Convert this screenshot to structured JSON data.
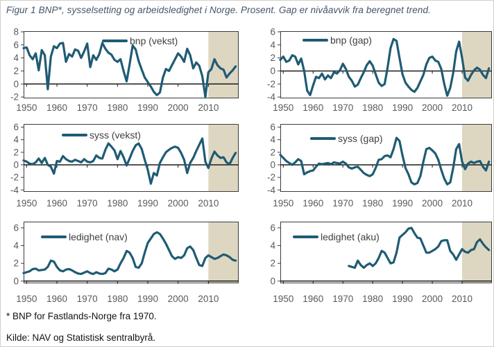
{
  "title": "Figur 1 BNP*, sysselsetting og arbeidsledighet i Norge. Prosent. Gap er nivåavvik fra beregnet trend.",
  "footnotes": {
    "note": "* BNP for Fastlands-Norge fra 1970.",
    "source": "Kilde: NAV og Statistisk sentralbyrå."
  },
  "colors": {
    "line": "#1f5b74",
    "shade": "#ddd7c2",
    "plot_border": "#3a3a3a",
    "zero_axis": "#1a1a1a",
    "tick_label": "#595959",
    "legend_text": "#404040",
    "title_text": "#44546a"
  },
  "chart_data": [
    {
      "type": "line",
      "legend": "bnp (vekst)",
      "x_start": 1949,
      "x_step": 1,
      "values": [
        5.5,
        5.6,
        4.4,
        3.8,
        4.7,
        2.1,
        5.2,
        4.4,
        -0.8,
        4.2,
        5.8,
        5.5,
        6.2,
        6.3,
        3.4,
        4.6,
        4.2,
        5.3,
        5.1,
        4.0,
        5.0,
        6.2,
        2.6,
        4.4,
        3.7,
        4.6,
        6.3,
        5.4,
        4.8,
        4.5,
        3.7,
        3.4,
        3.8,
        2.0,
        0.4,
        3.0,
        5.9,
        5.3,
        3.5,
        2.2,
        1.0,
        0.3,
        -0.4,
        -1.2,
        -1.7,
        -1.3,
        1.0,
        2.3,
        2.0,
        2.9,
        3.8,
        4.7,
        4.2,
        3.4,
        5.4,
        4.4,
        2.4,
        3.3,
        2.8,
        1.2,
        -2.0,
        1.8,
        2.3,
        3.8,
        2.9,
        2.4,
        2.2,
        1.0,
        1.6,
        2.1,
        2.7
      ],
      "ylim": [
        -2,
        8
      ],
      "yticks": [
        8,
        6,
        4,
        2,
        0,
        -2
      ],
      "xticks": [
        1950,
        1960,
        1970,
        1980,
        1990,
        2000,
        2010
      ],
      "xlim": [
        1949,
        2020
      ],
      "shaded_from": 2010,
      "shaded_to": 2020,
      "grid": false,
      "legend_position": "top-center"
    },
    {
      "type": "line",
      "legend": "bnp (gap)",
      "x_start": 1949,
      "x_step": 1,
      "values": [
        1.7,
        2.2,
        1.4,
        1.6,
        2.4,
        2.2,
        1.0,
        1.9,
        0.0,
        -3.0,
        -3.7,
        -2.2,
        -0.9,
        -1.1,
        -0.4,
        -1.3,
        -0.7,
        -1.1,
        -0.2,
        -0.4,
        0.1,
        1.1,
        0.3,
        -0.9,
        -1.5,
        -2.4,
        -2.1,
        -1.1,
        -0.2,
        0.9,
        1.5,
        0.8,
        -0.5,
        -1.8,
        -2.3,
        -2.0,
        0.5,
        3.5,
        4.9,
        4.6,
        2.0,
        -0.5,
        -1.8,
        -2.4,
        -2.9,
        -3.2,
        -2.6,
        -1.6,
        -0.6,
        1.0,
        2.0,
        2.2,
        1.6,
        1.4,
        0.3,
        -2.0,
        -3.8,
        -2.6,
        -0.3,
        3.0,
        4.5,
        2.0,
        -1.0,
        -1.5,
        -0.6,
        0.1,
        0.5,
        0.2,
        -0.6,
        -1.1,
        0.4
      ],
      "ylim": [
        -4,
        6
      ],
      "yticks": [
        6,
        4,
        2,
        0,
        -2,
        -4
      ],
      "xticks": [
        1950,
        1960,
        1970,
        1980,
        1990,
        2000,
        2010
      ],
      "xlim": [
        1949,
        2020
      ],
      "shaded_from": 2010,
      "shaded_to": 2020,
      "grid": false,
      "legend_position": "top-left"
    },
    {
      "type": "line",
      "legend": "syss (vekst)",
      "x_start": 1949,
      "x_step": 1,
      "values": [
        0.7,
        0.5,
        0.2,
        0.1,
        0.4,
        1.0,
        0.3,
        1.1,
        0.0,
        -0.3,
        -1.4,
        0.6,
        0.5,
        1.4,
        0.9,
        0.6,
        0.5,
        0.8,
        0.6,
        0.4,
        0.9,
        0.5,
        0.4,
        0.6,
        1.5,
        1.1,
        1.0,
        2.4,
        3.4,
        2.9,
        2.3,
        0.9,
        2.2,
        1.2,
        -0.1,
        1.0,
        2.2,
        3.1,
        3.4,
        2.5,
        0.8,
        -0.8,
        -3.0,
        -1.3,
        -1.7,
        0.3,
        1.2,
        2.0,
        2.4,
        2.7,
        2.9,
        2.7,
        1.9,
        0.8,
        -1.3,
        0.3,
        1.1,
        2.2,
        3.2,
        4.2,
        0.5,
        -0.5,
        1.0,
        2.1,
        1.5,
        1.1,
        1.2,
        0.4,
        0.1,
        1.1,
        1.9
      ],
      "ylim": [
        -4,
        6
      ],
      "yticks": [
        6,
        4,
        2,
        0,
        -2,
        -4
      ],
      "xticks": [
        1950,
        1960,
        1970,
        1980,
        1990,
        2000,
        2010
      ],
      "xlim": [
        1949,
        2020
      ],
      "shaded_from": 2010,
      "shaded_to": 2020,
      "grid": false,
      "legend_position": "top-left"
    },
    {
      "type": "line",
      "legend": "syss (gap)",
      "x_start": 1949,
      "x_step": 1,
      "values": [
        1.6,
        1.1,
        0.6,
        0.3,
        0.0,
        0.4,
        0.9,
        0.6,
        -1.5,
        -1.2,
        -1.0,
        -0.9,
        -0.3,
        0.2,
        0.1,
        0.2,
        0.3,
        0.1,
        0.4,
        0.3,
        0.2,
        0.5,
        0.2,
        -0.4,
        -0.6,
        -0.4,
        -0.3,
        -0.8,
        -1.3,
        -1.6,
        -1.8,
        -1.5,
        -0.5,
        0.8,
        0.9,
        1.4,
        1.5,
        1.2,
        2.5,
        4.3,
        3.8,
        1.5,
        -0.5,
        -1.5,
        -2.8,
        -3.1,
        -2.9,
        -1.8,
        0.5,
        2.5,
        2.7,
        2.3,
        1.8,
        0.8,
        -0.8,
        -2.2,
        -3.1,
        -2.8,
        -0.5,
        2.5,
        3.3,
        0.5,
        -0.7,
        0.2,
        0.5,
        0.3,
        0.5,
        0.6,
        -0.3,
        -0.9,
        0.5
      ],
      "ylim": [
        -4,
        6
      ],
      "yticks": [
        6,
        4,
        2,
        0,
        -2,
        -4
      ],
      "xticks": [
        1950,
        1960,
        1970,
        1980,
        1990,
        2000,
        2010
      ],
      "xlim": [
        1949,
        2020
      ],
      "shaded_from": 2010,
      "shaded_to": 2020,
      "grid": false,
      "legend_position": "top-left"
    },
    {
      "type": "line",
      "legend": "ledighet (nav)",
      "x_start": 1949,
      "x_step": 1,
      "values": [
        0.9,
        1.0,
        1.1,
        1.35,
        1.4,
        1.2,
        1.25,
        1.3,
        1.6,
        2.3,
        2.2,
        1.6,
        1.2,
        1.1,
        1.3,
        1.35,
        1.2,
        1.0,
        0.85,
        0.8,
        0.95,
        1.1,
        0.9,
        0.8,
        1.0,
        0.85,
        0.8,
        0.9,
        1.4,
        1.3,
        1.1,
        1.3,
        2.0,
        2.6,
        3.4,
        3.2,
        2.6,
        1.6,
        1.5,
        2.0,
        3.2,
        4.3,
        4.8,
        5.3,
        5.5,
        5.3,
        4.8,
        4.2,
        3.5,
        2.8,
        2.5,
        2.7,
        2.6,
        2.9,
        3.7,
        3.9,
        3.5,
        2.6,
        1.8,
        1.7,
        2.6,
        2.9,
        2.7,
        2.5,
        2.6,
        2.8,
        3.0,
        2.9,
        2.7,
        2.4,
        2.3
      ],
      "ylim": [
        0,
        6
      ],
      "yticks": [
        6,
        4,
        2,
        0
      ],
      "xticks": [
        1950,
        1960,
        1970,
        1980,
        1990,
        2000,
        2010
      ],
      "xlim": [
        1949,
        2020
      ],
      "shaded_from": 2010,
      "shaded_to": 2020,
      "grid": false,
      "legend_position": "top-left"
    },
    {
      "type": "line",
      "legend": "ledighet (aku)",
      "x_start": 1972,
      "x_step": 1,
      "values": [
        1.7,
        1.6,
        1.5,
        2.3,
        1.8,
        1.5,
        1.8,
        2.0,
        1.7,
        2.0,
        2.6,
        3.4,
        3.2,
        2.6,
        2.0,
        2.1,
        3.2,
        4.9,
        5.2,
        5.5,
        5.9,
        6.0,
        5.4,
        4.9,
        4.8,
        4.0,
        3.2,
        3.2,
        3.4,
        3.6,
        3.9,
        4.5,
        4.6,
        4.6,
        3.4,
        3.0,
        2.4,
        3.0,
        3.6,
        3.3,
        3.2,
        3.5,
        3.6,
        4.4,
        4.7,
        4.2,
        3.8,
        3.5
      ],
      "ylim": [
        0,
        6
      ],
      "yticks": [
        6,
        4,
        2,
        0
      ],
      "xticks": [
        1950,
        1960,
        1970,
        1980,
        1990,
        2000,
        2010
      ],
      "xlim": [
        1949,
        2020
      ],
      "shaded_from": 2010,
      "shaded_to": 2020,
      "grid": false,
      "legend_position": "top-left"
    }
  ]
}
